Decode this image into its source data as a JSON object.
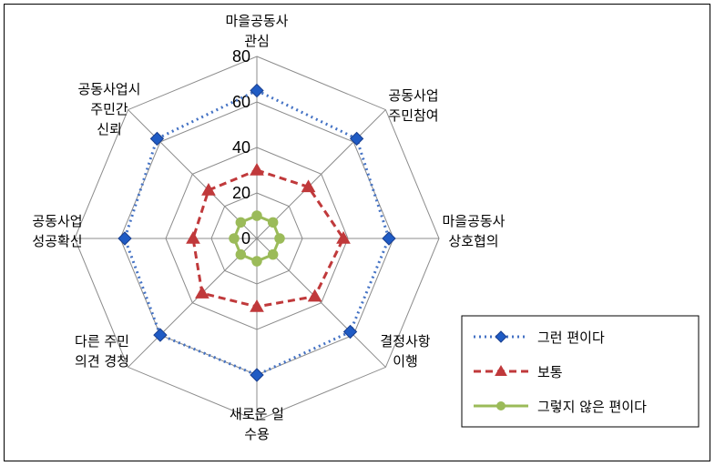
{
  "chart_data": {
    "type": "radar",
    "axes": [
      [
        "마을공동사",
        "관심"
      ],
      [
        "공동사업",
        "주민참여"
      ],
      [
        "마을공동사",
        "상호협의"
      ],
      [
        "결정사항",
        "이행"
      ],
      [
        "새로운 일",
        "수용"
      ],
      [
        "다른 주민",
        "의견 경청"
      ],
      [
        "공동사업",
        "성공확신"
      ],
      [
        "공동사업시",
        "주민간",
        "신뢰"
      ]
    ],
    "rlim": [
      0,
      80
    ],
    "ticks": [
      0,
      20,
      40,
      60,
      80
    ],
    "grid": true,
    "legend_position": "bottom-right",
    "series": [
      {
        "name": "그런 편이다",
        "color": "#4472c4",
        "line": "dotted",
        "marker": "diamond",
        "values": [
          65,
          62,
          58,
          58,
          60,
          60,
          58,
          62
        ]
      },
      {
        "name": "보통",
        "color": "#c0393b",
        "line": "dashed",
        "marker": "triangle",
        "values": [
          30,
          32,
          38,
          36,
          30,
          34,
          28,
          30
        ]
      },
      {
        "name": "그렇지 않은 편이다",
        "color": "#9bbb59",
        "line": "solid",
        "marker": "circle",
        "values": [
          10,
          10,
          10,
          10,
          10,
          10,
          10,
          10
        ]
      }
    ]
  }
}
